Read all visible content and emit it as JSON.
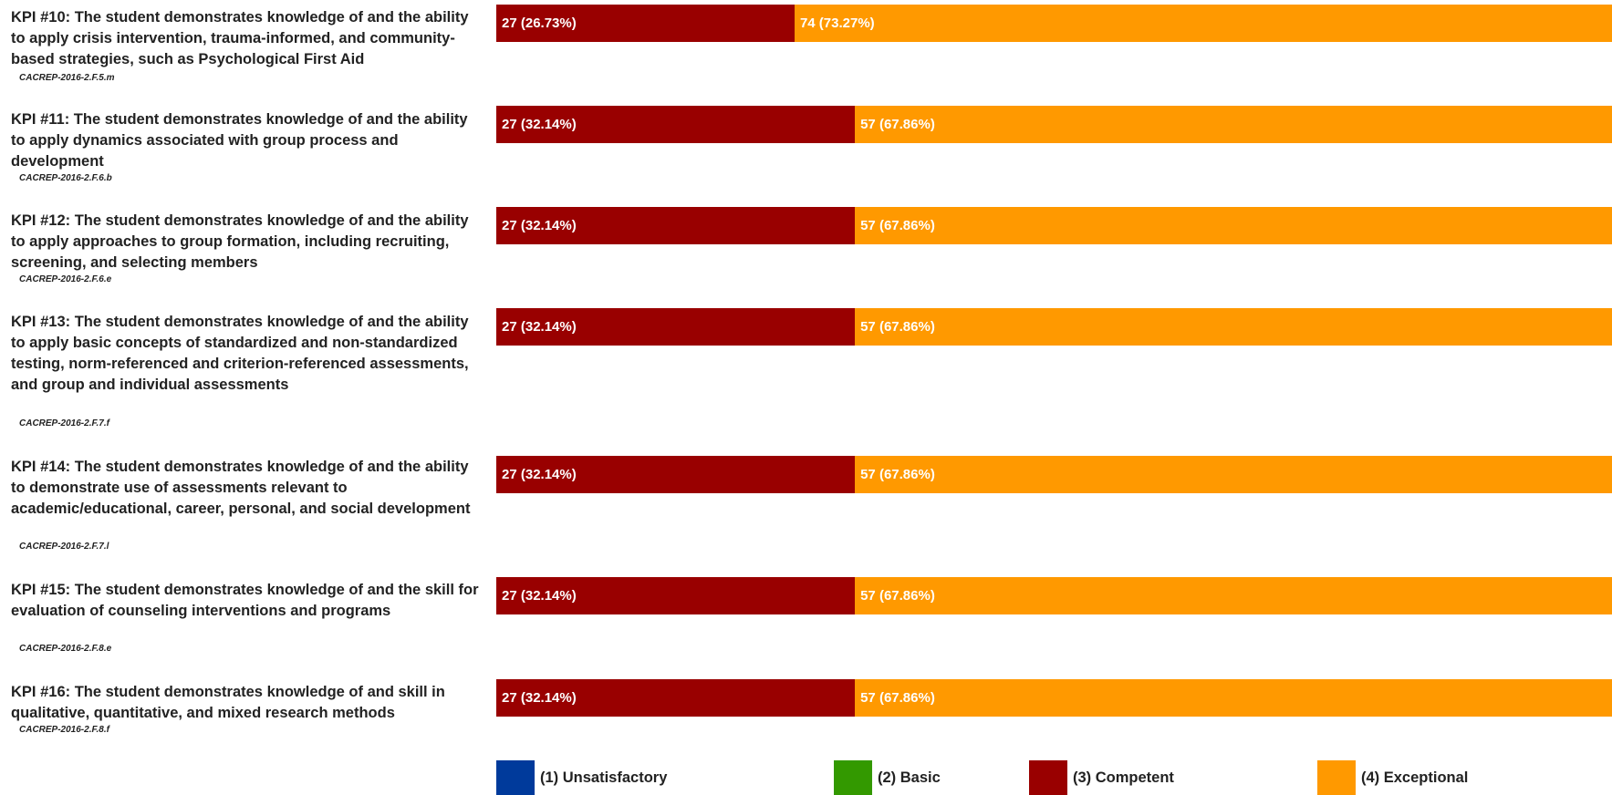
{
  "colors": {
    "unsatisfactory": "#003a9b",
    "basic": "#339900",
    "competent": "#990000",
    "exceptional": "#ff9900"
  },
  "chart_data": {
    "type": "bar",
    "orientation": "horizontal",
    "stacked": true,
    "normalized": true,
    "legend_position": "bottom",
    "grid": false,
    "categories": [
      "KPI #10: The student demonstrates knowledge of and the ability to apply crisis intervention, trauma-informed, and community-based strategies, such as Psychological First Aid",
      "KPI #11: The student demonstrates knowledge of and the ability to apply dynamics associated with group process and development",
      "KPI #12: The student demonstrates knowledge of and the ability to apply approaches to group formation, including recruiting, screening, and selecting members",
      "KPI #13: The student demonstrates knowledge of and the ability to apply basic concepts of standardized and non-standardized testing, norm-referenced and criterion-referenced assessments, and group and individual assessments",
      "KPI #14: The student demonstrates knowledge of and the ability to demonstrate use of assessments relevant to academic/educational, career, personal, and social development",
      "KPI #15: The student demonstrates knowledge of and the skill for evaluation of counseling interventions and programs",
      "KPI #16: The student demonstrates knowledge of and skill in qualitative, quantitative, and mixed research methods"
    ],
    "codes": [
      "CACREP-2016-2.F.5.m",
      "CACREP-2016-2.F.6.b",
      "CACREP-2016-2.F.6.e",
      "CACREP-2016-2.F.7.f",
      "CACREP-2016-2.F.7.l",
      "CACREP-2016-2.F.8.e",
      "CACREP-2016-2.F.8.f"
    ],
    "series": [
      {
        "name": "(1) Unsatisfactory",
        "color_key": "unsatisfactory",
        "values": [
          0,
          0,
          0,
          0,
          0,
          0,
          0
        ],
        "labels": [
          "",
          "",
          "",
          "",
          "",
          "",
          ""
        ]
      },
      {
        "name": "(2) Basic",
        "color_key": "basic",
        "values": [
          0,
          0,
          0,
          0,
          0,
          0,
          0
        ],
        "labels": [
          "",
          "",
          "",
          "",
          "",
          "",
          ""
        ]
      },
      {
        "name": "(3) Competent",
        "color_key": "competent",
        "values": [
          27,
          27,
          27,
          27,
          27,
          27,
          27
        ],
        "labels": [
          "27 (26.73%)",
          "27 (32.14%)",
          "27 (32.14%)",
          "27 (32.14%)",
          "27 (32.14%)",
          "27 (32.14%)",
          "27 (32.14%)"
        ]
      },
      {
        "name": "(4) Exceptional",
        "color_key": "exceptional",
        "values": [
          74,
          57,
          57,
          57,
          57,
          57,
          57
        ],
        "labels": [
          "74 (73.27%)",
          "57 (67.86%)",
          "57 (67.86%)",
          "57 (67.86%)",
          "57 (67.86%)",
          "57 (67.86%)",
          "57 (67.86%)"
        ]
      }
    ]
  }
}
